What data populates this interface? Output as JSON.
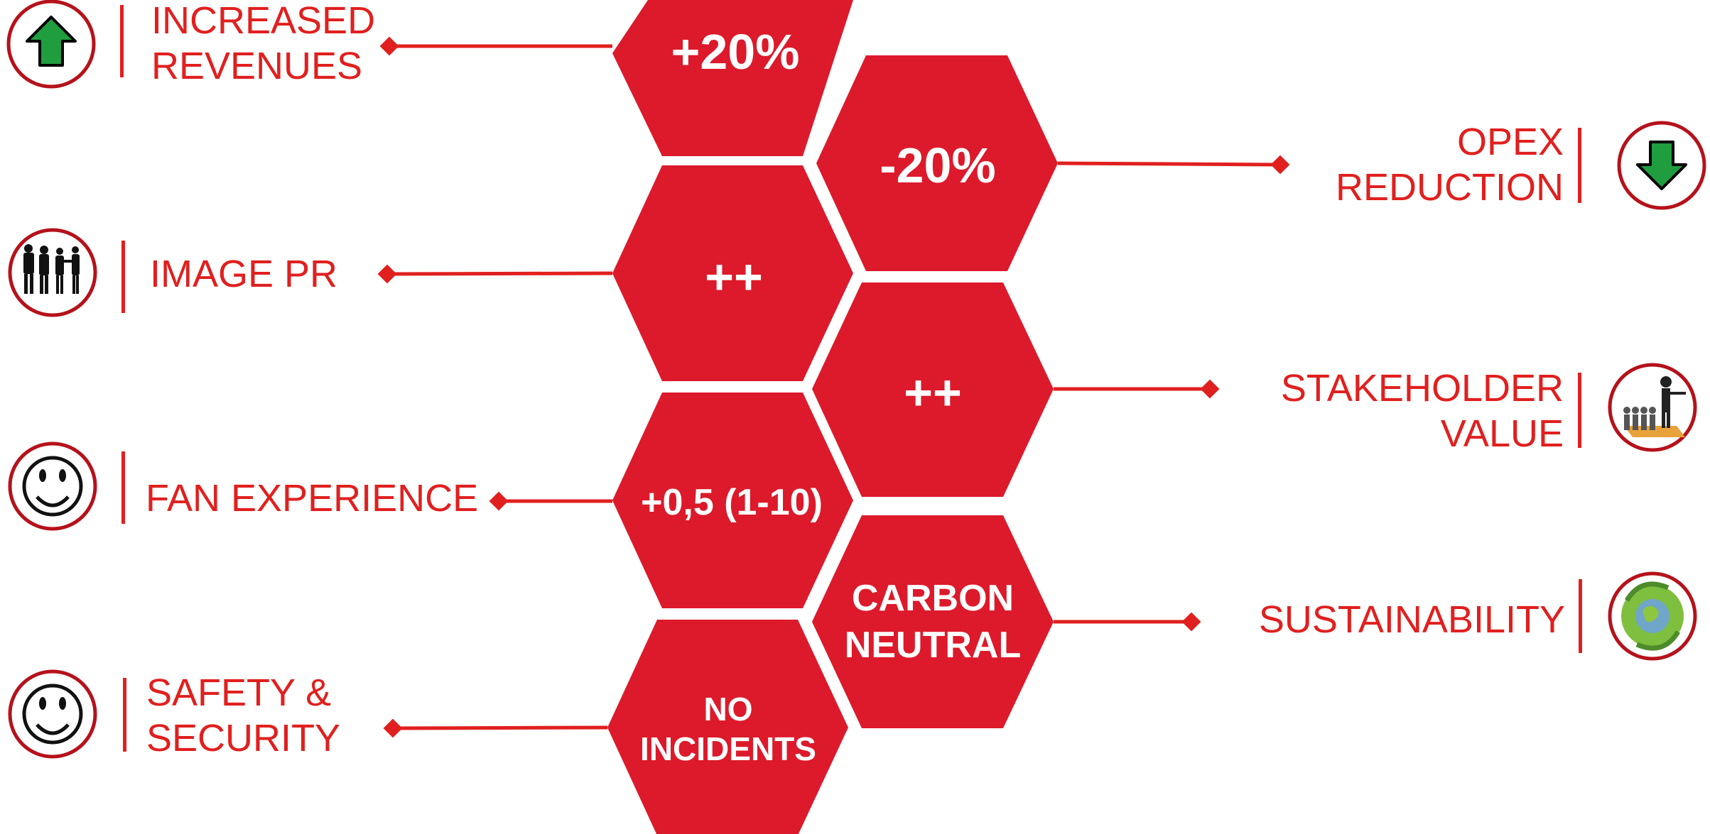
{
  "colors": {
    "accent": "#e0201f",
    "hex_fill": "#dc1a2b",
    "hex_text": "#ffffff",
    "arrow_green": "#1f9d3f"
  },
  "benefits": [
    {
      "label": "INCREASED\nREVENUES",
      "value": "+20%",
      "icon": "up-arrow-icon"
    },
    {
      "label": "OPEX\nREDUCTION",
      "value": "-20%",
      "icon": "down-arrow-icon"
    },
    {
      "label": "IMAGE PR",
      "value": "++",
      "icon": "people-silhouette-icon"
    },
    {
      "label": "STAKEHOLDER\nVALUE",
      "value": "++",
      "icon": "stakeholder-figures-icon"
    },
    {
      "label": "FAN EXPERIENCE",
      "value": "+0,5 (1-10)",
      "icon": "smiley-icon"
    },
    {
      "label": "SUSTAINABILITY",
      "value": "CARBON\nNEUTRAL",
      "icon": "recycle-globe-icon"
    },
    {
      "label": "SAFETY &\nSECURITY",
      "value": "NO\nINCIDENTS",
      "icon": "smiley-icon"
    }
  ]
}
